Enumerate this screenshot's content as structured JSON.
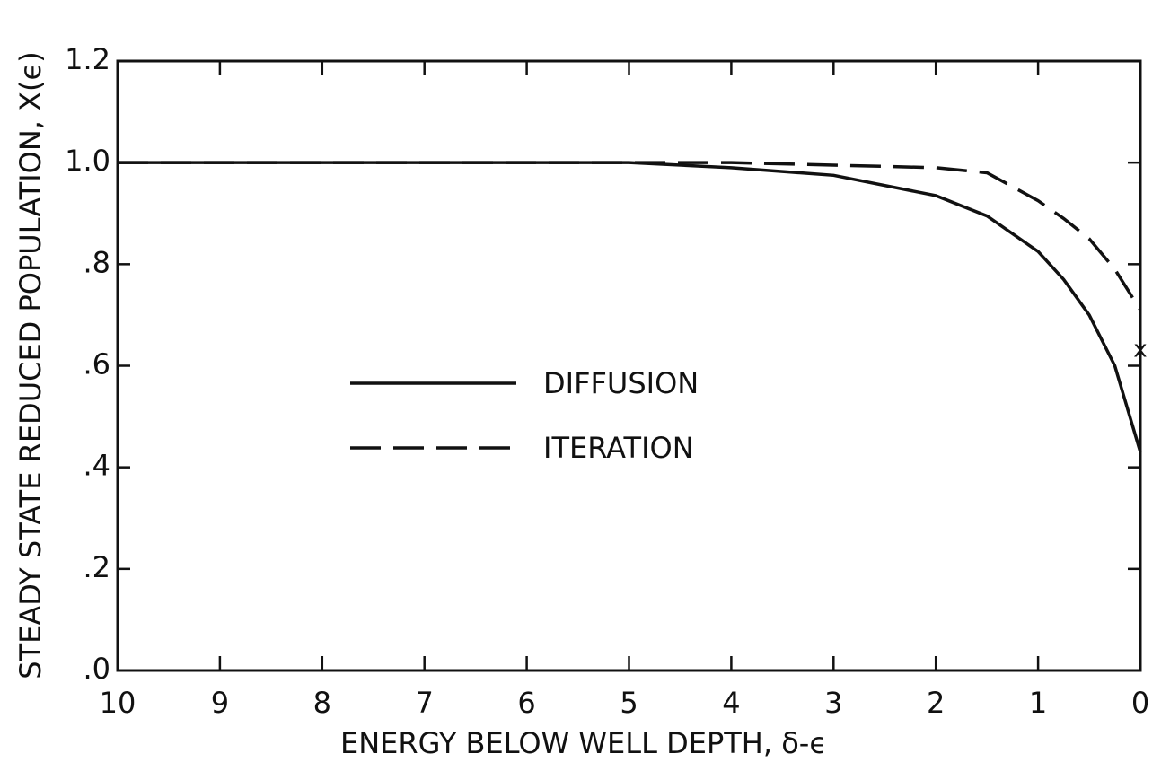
{
  "chart_data": {
    "type": "line",
    "xlabel": "ENERGY BELOW WELL DEPTH, δ-ϵ",
    "ylabel": "STEADY STATE REDUCED POPULATION, X(ϵ)",
    "x": [
      10,
      9,
      8,
      7,
      6,
      5,
      4,
      3,
      2,
      1.5,
      1,
      0.75,
      0.5,
      0.25,
      0
    ],
    "series": [
      {
        "name": "DIFFUSION",
        "color": "#111111",
        "dash": "solid",
        "values": [
          1.0,
          1.0,
          1.0,
          1.0,
          1.0,
          1.0,
          0.99,
          0.975,
          0.935,
          0.895,
          0.825,
          0.77,
          0.7,
          0.6,
          0.43
        ]
      },
      {
        "name": "ITERATION",
        "color": "#111111",
        "dash": "dashed",
        "values": [
          1.0,
          1.0,
          1.0,
          1.0,
          1.0,
          1.0,
          1.0,
          0.995,
          0.99,
          0.98,
          0.925,
          0.89,
          0.85,
          0.79,
          0.71
        ]
      }
    ],
    "annotations": [
      {
        "text": "x",
        "x": 0,
        "y": 0.62
      }
    ],
    "xlim": [
      10,
      0
    ],
    "xticks": [
      10,
      9,
      8,
      7,
      6,
      5,
      4,
      3,
      2,
      1,
      0
    ],
    "ylim": [
      0,
      1.2
    ],
    "yticks": [
      {
        "value": 0,
        "label": ".0"
      },
      {
        "value": 0.2,
        "label": ".2"
      },
      {
        "value": 0.4,
        "label": ".4"
      },
      {
        "value": 0.6,
        "label": ".6"
      },
      {
        "value": 0.8,
        "label": ".8"
      },
      {
        "value": 1.0,
        "label": "1.0"
      },
      {
        "value": 1.2,
        "label": "1.2"
      }
    ],
    "legend": "center",
    "grid": false
  }
}
